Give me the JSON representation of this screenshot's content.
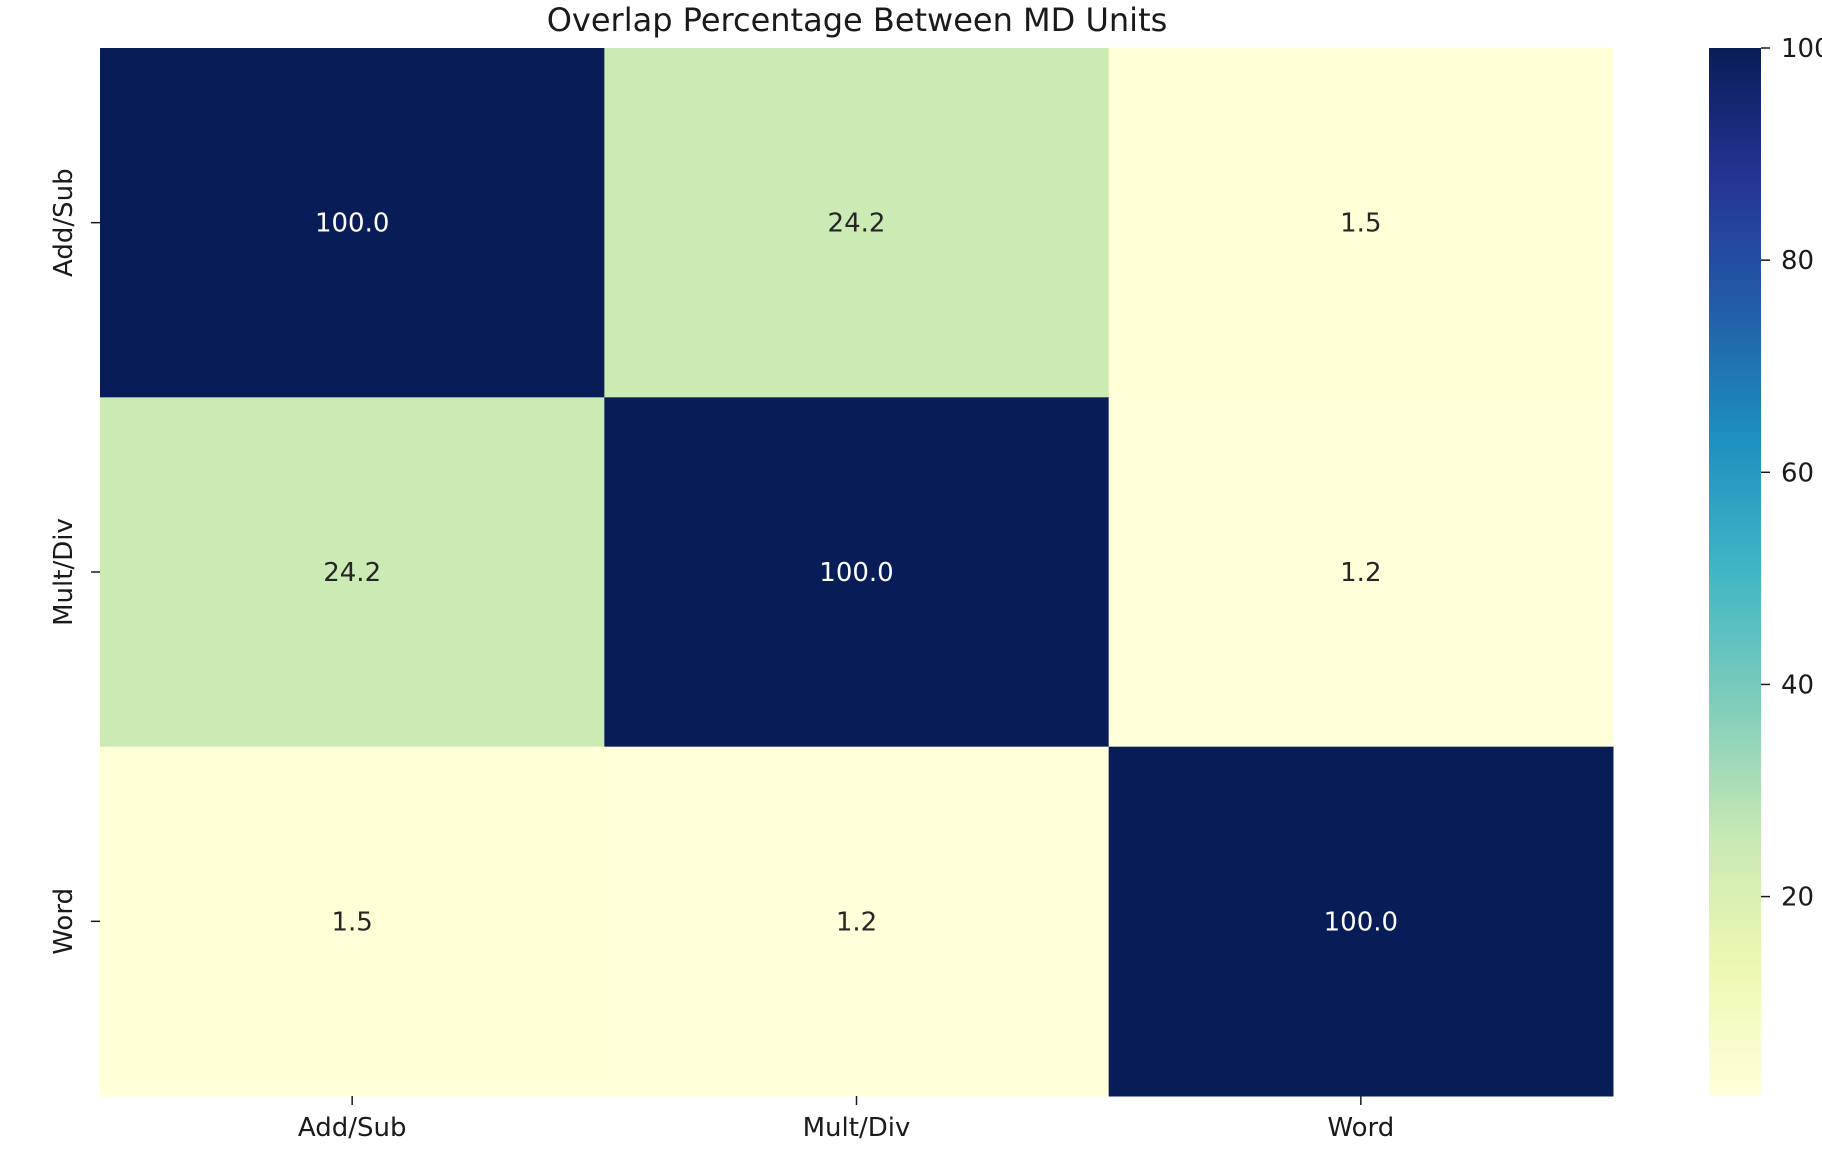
{
  "chart_data": {
    "type": "heatmap",
    "title": "Overlap Percentage Between MD Units",
    "xlabel": "",
    "ylabel": "",
    "row_labels": [
      "Add/Sub",
      "Mult/Div",
      "Word"
    ],
    "col_labels": [
      "Add/Sub",
      "Mult/Div",
      "Word"
    ],
    "values": [
      [
        100.0,
        24.2,
        1.5
      ],
      [
        24.2,
        100.0,
        1.2
      ],
      [
        1.5,
        1.2,
        100.0
      ]
    ],
    "value_format": "0.0",
    "colorbar": {
      "colormap": "YlGnBu",
      "range": [
        1.2,
        100
      ],
      "ticks": [
        20,
        40,
        60,
        80,
        100
      ],
      "tick_labels": [
        "20",
        "40",
        "60",
        "80",
        "100"
      ]
    },
    "colormap_stops": [
      "#ffffd9",
      "#edf8b1",
      "#c7e9b4",
      "#7fcdbb",
      "#41b6c4",
      "#1d91c0",
      "#225ea8",
      "#253494",
      "#081d58"
    ],
    "legend": "colorbar-right",
    "grid": false
  }
}
